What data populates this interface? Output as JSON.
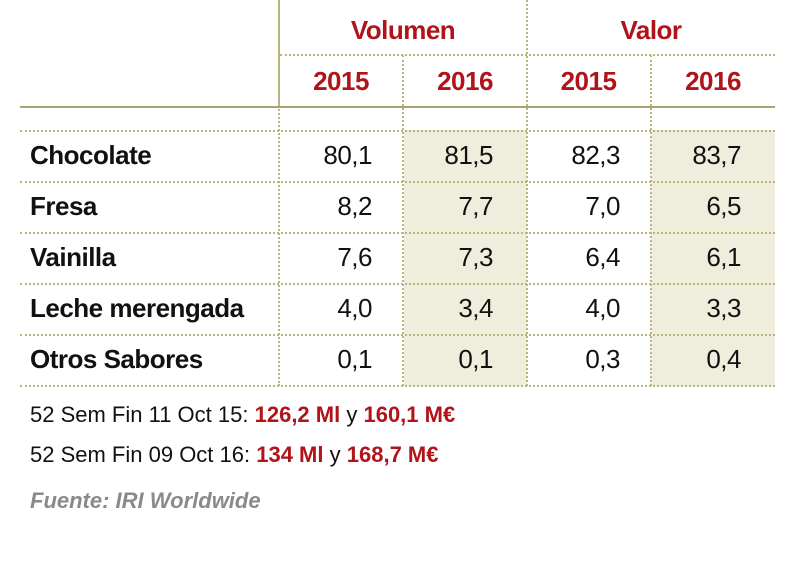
{
  "header": {
    "groups": [
      "Volumen",
      "Valor"
    ],
    "years": [
      "2015",
      "2016",
      "2015",
      "2016"
    ]
  },
  "table": {
    "rows": [
      [
        "Chocolate",
        "80,1",
        "81,5",
        "82,3",
        "83,7"
      ],
      [
        "Fresa",
        "8,2",
        "7,7",
        "7,0",
        "6,5"
      ],
      [
        "Vainilla",
        "7,6",
        "7,3",
        "6,4",
        "6,1"
      ],
      [
        "Leche merengada",
        "4,0",
        "3,4",
        "4,0",
        "3,3"
      ],
      [
        "Otros Sabores",
        "0,1",
        "0,1",
        "0,3",
        "0,4"
      ]
    ]
  },
  "notes": [
    {
      "text": "52 Sem Fin 11 Oct 15:",
      "volume": "126,2 Ml",
      "joiner": "y",
      "value": "160,1 M€"
    },
    {
      "text": "52 Sem Fin 09 Oct 16:",
      "volume": "134 Ml",
      "joiner": "y",
      "value": "168,7 M€"
    }
  ],
  "source": "Fuente: IRI Worldwide"
}
